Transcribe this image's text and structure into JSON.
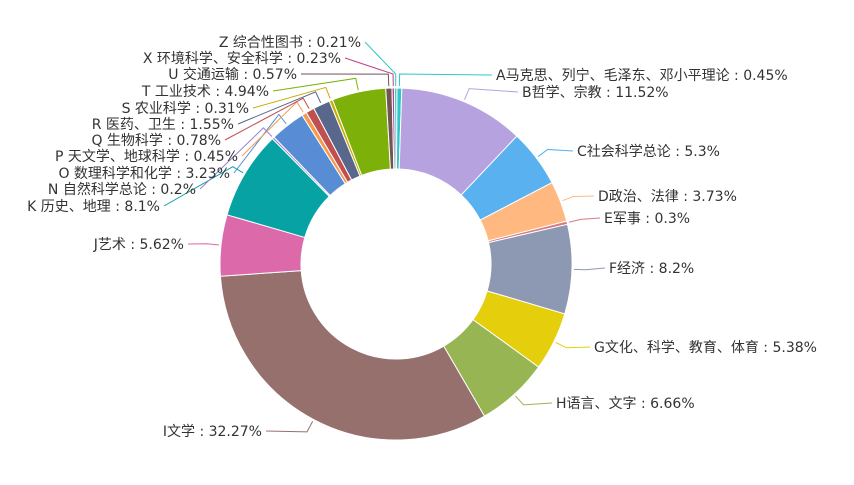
{
  "chart_data": {
    "type": "pie",
    "variant": "donut",
    "title": "",
    "legend": "none",
    "slices": [
      {
        "name": "A马克思、列宁、毛泽东、邓小平理论",
        "value": 0.45,
        "label": "A马克思、列宁、毛泽东、邓小平理论 : 0.45%",
        "color": "#2ec7c9"
      },
      {
        "name": "B哲学、宗教",
        "value": 11.52,
        "label": "B哲学、宗教 : 11.52%",
        "color": "#b6a2de"
      },
      {
        "name": "C社会科学总论",
        "value": 5.3,
        "label": "C社会科学总论 : 5.3%",
        "color": "#5ab1ef"
      },
      {
        "name": "D政治、法律",
        "value": 3.73,
        "label": "D政治、法律 : 3.73%",
        "color": "#ffb980"
      },
      {
        "name": "E军事",
        "value": 0.3,
        "label": "E军事 : 0.3%",
        "color": "#d87a80"
      },
      {
        "name": "F经济",
        "value": 8.2,
        "label": "F经济 : 8.2%",
        "color": "#8d98b3"
      },
      {
        "name": "G文化、科学、教育、体育",
        "value": 5.38,
        "label": "G文化、科学、教育、体育 : 5.38%",
        "color": "#e5cf0d"
      },
      {
        "name": "H语言、文字",
        "value": 6.66,
        "label": "H语言、文字 : 6.66%",
        "color": "#97b552"
      },
      {
        "name": "I文学",
        "value": 32.27,
        "label": "I文学 : 32.27%",
        "color": "#95706d"
      },
      {
        "name": "J艺术",
        "value": 5.62,
        "label": "J艺术 : 5.62%",
        "color": "#dc69aa"
      },
      {
        "name": "K 历史、地理",
        "value": 8.1,
        "label": "K 历史、地理 : 8.1%",
        "color": "#07a2a4"
      },
      {
        "name": "N 自然科学总论",
        "value": 0.2,
        "label": "N 自然科学总论 : 0.2%",
        "color": "#9a7fd1"
      },
      {
        "name": "O 数理科学和化学",
        "value": 3.23,
        "label": "O 数理科学和化学 : 3.23%",
        "color": "#588dd5"
      },
      {
        "name": "P 天文学、地球科学",
        "value": 0.45,
        "label": "P 天文学、地球科学 : 0.45%",
        "color": "#f5994e"
      },
      {
        "name": "Q 生物科学",
        "value": 0.78,
        "label": "Q 生物科学 : 0.78%",
        "color": "#c05050"
      },
      {
        "name": "R 医药、卫生",
        "value": 1.55,
        "label": "R 医药、卫生 : 1.55%",
        "color": "#59678c"
      },
      {
        "name": "S 农业科学",
        "value": 0.31,
        "label": "S 农业科学 : 0.31%",
        "color": "#c9ab00"
      },
      {
        "name": "T 工业技术",
        "value": 4.94,
        "label": "T 工业技术 : 4.94%",
        "color": "#7eb00a"
      },
      {
        "name": "U 交通运输",
        "value": 0.57,
        "label": "U 交通运输 : 0.57%",
        "color": "#6f5553"
      },
      {
        "name": "X 环境科学、安全科学",
        "value": 0.23,
        "label": "X 环境科学、安全科学 : 0.23%",
        "color": "#c14089"
      },
      {
        "name": "Z 综合性图书",
        "value": 0.21,
        "label": "Z 综合性图书 : 0.21%",
        "color": "#2ec7c9"
      }
    ]
  }
}
